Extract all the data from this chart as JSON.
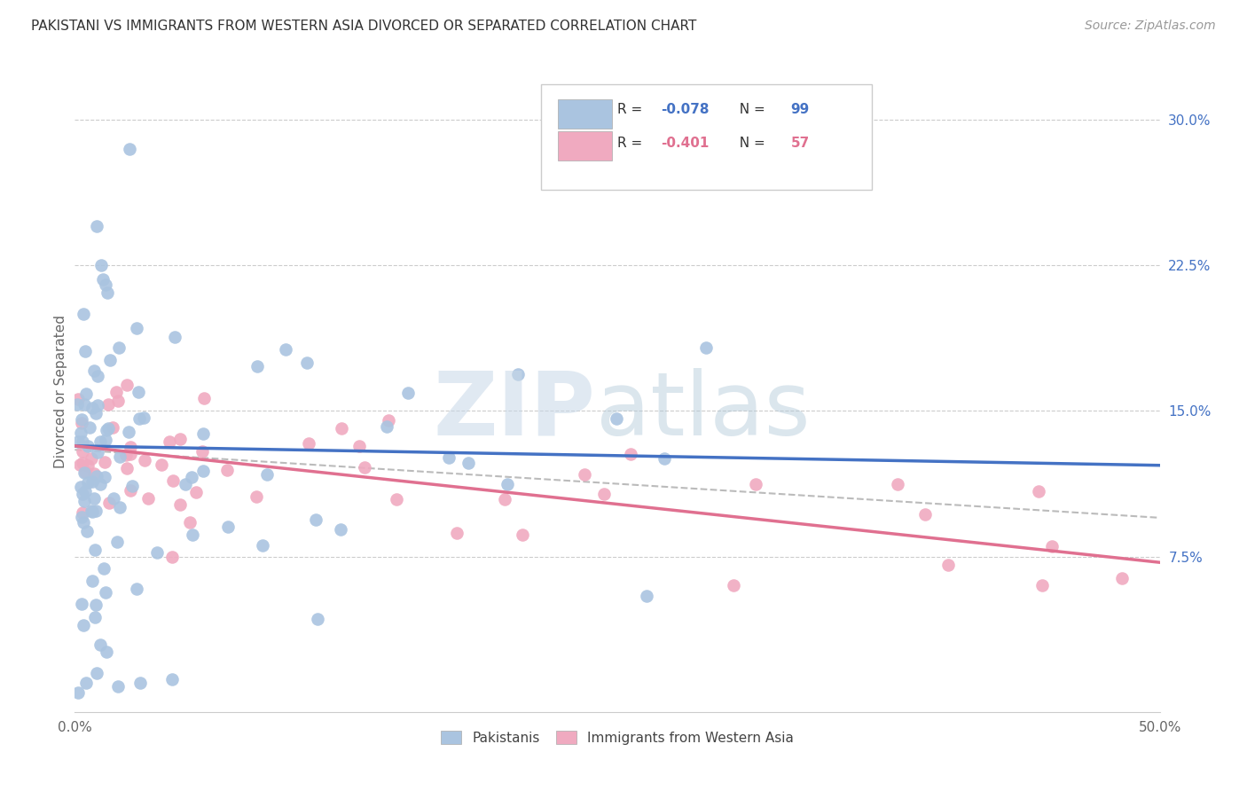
{
  "title": "PAKISTANI VS IMMIGRANTS FROM WESTERN ASIA DIVORCED OR SEPARATED CORRELATION CHART",
  "source": "Source: ZipAtlas.com",
  "ylabel": "Divorced or Separated",
  "xlim": [
    0.0,
    0.5
  ],
  "ylim": [
    -0.005,
    0.325
  ],
  "yticks": [
    0.075,
    0.15,
    0.225,
    0.3
  ],
  "ytick_labels": [
    "7.5%",
    "15.0%",
    "22.5%",
    "30.0%"
  ],
  "grid_color": "#cccccc",
  "background_color": "#ffffff",
  "blue_R": "-0.078",
  "blue_N": 99,
  "pink_R": "-0.401",
  "pink_N": 57,
  "blue_color": "#aac4e0",
  "pink_color": "#f0aac0",
  "blue_line_color": "#4472c4",
  "pink_line_color": "#e07090",
  "dash_color": "#bbbbbb",
  "title_fontsize": 11,
  "source_fontsize": 10,
  "tick_fontsize": 11,
  "ylabel_fontsize": 11
}
